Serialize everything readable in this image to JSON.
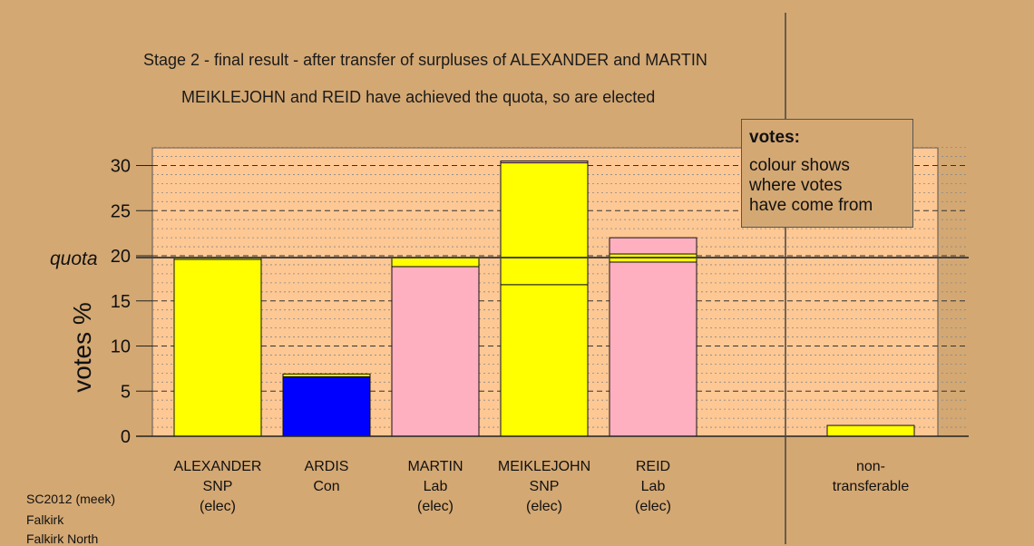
{
  "title_line1": "Stage 2 - final result - after transfer of surpluses of ALEXANDER and MARTIN",
  "title_line2": "MEIKLEJOHN and REID have achieved the quota, so are elected",
  "legend": {
    "title": "votes:",
    "lines": [
      "colour shows",
      "where votes",
      "have come from"
    ]
  },
  "footer": [
    "SC2012 (meek)",
    "Falkirk",
    "Falkirk North"
  ],
  "colors": {
    "background": "#d4a873",
    "plot": "#fdc894",
    "snp": "#ffff00",
    "con": "#0000ff",
    "lab": "#ffb0c0"
  },
  "chart_data": {
    "type": "bar",
    "stacked": true,
    "ylabel": "votes %",
    "ylim": [
      0,
      32
    ],
    "yticks": [
      0,
      5,
      10,
      15,
      20,
      25,
      30
    ],
    "quota": 19.8,
    "quota_label": "quota",
    "grid": true,
    "legend_position": "top-right",
    "categories": [
      {
        "lines": [
          "ALEXANDER",
          "SNP",
          "(elec)"
        ],
        "segments": [
          {
            "value": 19.6,
            "color": "#ffff00"
          },
          {
            "value": 0.2,
            "color": "#ffff00"
          }
        ]
      },
      {
        "lines": [
          "ARDIS",
          "Con",
          ""
        ],
        "segments": [
          {
            "value": 6.6,
            "color": "#0000ff"
          },
          {
            "value": 0.3,
            "color": "#ffff00"
          }
        ]
      },
      {
        "lines": [
          "MARTIN",
          "Lab",
          "(elec)"
        ],
        "segments": [
          {
            "value": 18.8,
            "color": "#ffb0c0"
          },
          {
            "value": 1.0,
            "color": "#ffff00"
          }
        ]
      },
      {
        "lines": [
          "MEIKLEJOHN",
          "SNP",
          "(elec)"
        ],
        "segments": [
          {
            "value": 16.8,
            "color": "#ffff00"
          },
          {
            "value": 13.5,
            "color": "#ffff00"
          },
          {
            "value": 0.2,
            "color": "#ffb0c0"
          }
        ]
      },
      {
        "lines": [
          "REID",
          "Lab",
          "(elec)"
        ],
        "segments": [
          {
            "value": 19.3,
            "color": "#ffb0c0"
          },
          {
            "value": 0.9,
            "color": "#ffff00"
          },
          {
            "value": 1.8,
            "color": "#ffb0c0"
          }
        ]
      },
      {
        "lines": [
          "",
          "",
          ""
        ],
        "segments": []
      },
      {
        "lines": [
          "non-",
          "transferable",
          ""
        ],
        "segments": [
          {
            "value": 1.2,
            "color": "#ffff00"
          }
        ]
      }
    ]
  }
}
